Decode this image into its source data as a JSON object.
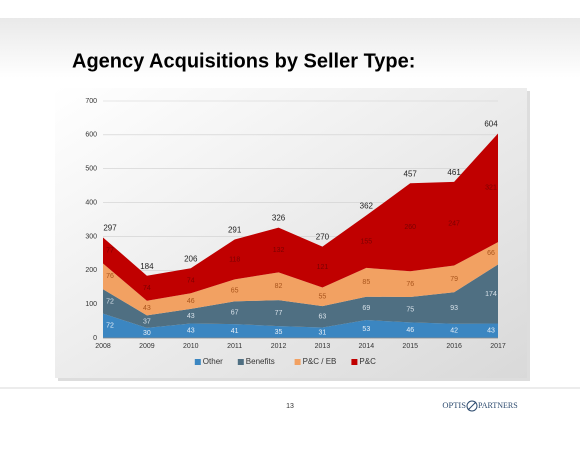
{
  "chart_data": {
    "type": "stacked_area",
    "title": "Agency Acquisitions by Seller Type:",
    "categories": [
      "2008",
      "2009",
      "2010",
      "2011",
      "2012",
      "2013",
      "2014",
      "2015",
      "2016",
      "2017"
    ],
    "series": [
      {
        "name": "Other",
        "color": "#3b86c1",
        "values": [
          72,
          30,
          43,
          41,
          35,
          31,
          53,
          46,
          42,
          43
        ]
      },
      {
        "name": "Benefits",
        "color": "#4f6f82",
        "values": [
          72,
          37,
          43,
          67,
          77,
          63,
          69,
          75,
          93,
          174
        ]
      },
      {
        "name": "P&C / EB",
        "color": "#f2a162",
        "values": [
          76,
          43,
          46,
          65,
          82,
          55,
          85,
          76,
          79,
          66
        ]
      },
      {
        "name": "P&C",
        "color": "#c00000",
        "values": [
          77,
          74,
          74,
          118,
          132,
          121,
          155,
          260,
          247,
          321
        ]
      }
    ],
    "totals": [
      297,
      184,
      206,
      291,
      326,
      270,
      362,
      457,
      461,
      604
    ],
    "ylim": [
      0,
      700
    ],
    "yticks": [
      0,
      100,
      200,
      300,
      400,
      500,
      600,
      700
    ],
    "grid": true,
    "legend": "bottom"
  },
  "footer": {
    "page": "13",
    "logo_left": "OPTIS",
    "logo_right": "PARTNERS"
  }
}
